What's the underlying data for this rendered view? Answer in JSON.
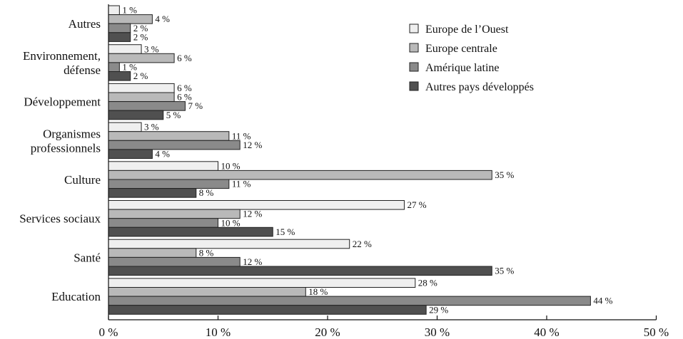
{
  "chart_data": {
    "type": "bar",
    "orientation": "horizontal",
    "categories": [
      [
        "Autres"
      ],
      [
        "Environnement,",
        "défense"
      ],
      [
        "Développement"
      ],
      [
        "Organismes",
        "professionnels"
      ],
      [
        "Culture"
      ],
      [
        "Services sociaux"
      ],
      [
        "Santé"
      ],
      [
        "Education"
      ]
    ],
    "series": [
      {
        "name": "Europe de l’Ouest",
        "color": "#efefef",
        "values": [
          1,
          3,
          6,
          3,
          10,
          27,
          22,
          28
        ]
      },
      {
        "name": "Europe centrale",
        "color": "#b9b9b9",
        "values": [
          4,
          6,
          6,
          11,
          35,
          12,
          8,
          18
        ]
      },
      {
        "name": "Amérique latine",
        "color": "#8a8a8a",
        "values": [
          2,
          1,
          7,
          12,
          11,
          10,
          12,
          44
        ]
      },
      {
        "name": "Autres pays développés",
        "color": "#505050",
        "values": [
          2,
          2,
          5,
          4,
          8,
          15,
          35,
          29
        ]
      }
    ],
    "value_suffix": " %",
    "xlim": [
      0,
      50
    ],
    "xticks": [
      0,
      10,
      20,
      30,
      40,
      50
    ],
    "xtick_labels": [
      "0 %",
      "10 %",
      "20 %",
      "30 %",
      "40 %",
      "50 %"
    ],
    "legend_position": "top-right",
    "grid": false
  }
}
